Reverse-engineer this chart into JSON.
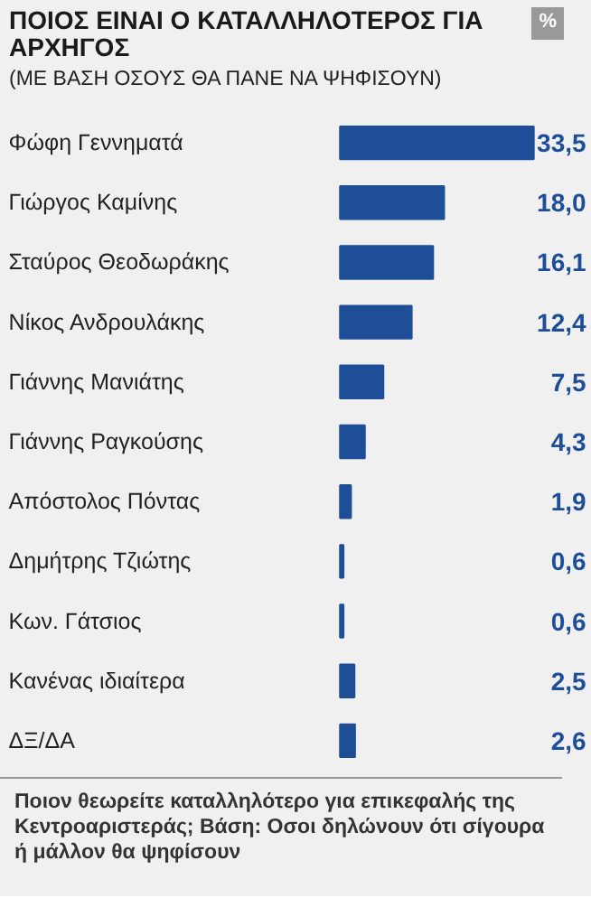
{
  "chart_data": {
    "type": "bar",
    "orientation": "horizontal",
    "title": "ΠΟΙΟΣ ΕΙΝΑΙ Ο ΚΑΤΑΛΛΗΛΟΤΕΡΟΣ ΓΙΑ ΑΡΧΗΓΟΣ",
    "subtitle": "(ΜΕ ΒΑΣΗ ΟΣΟΥΣ ΘΑ ΠΑΝΕ ΝΑ ΨΗΦΙΣΟΥΝ)",
    "categories": [
      "Φώφη Γεννηματά",
      "Γιώργος Καμίνης",
      "Σταύρος Θεοδωράκης",
      "Νίκος Ανδρουλάκης",
      "Γιάννης Μανιάτης",
      "Γιάννης Ραγκούσης",
      "Απόστολος Πόντας",
      "Δημήτρης Τζιώτης",
      "Κων. Γάτσιος",
      "Κανένας ιδιαίτερα",
      "ΔΞ/ΔΑ"
    ],
    "values": [
      33.5,
      18.0,
      16.1,
      12.4,
      7.5,
      4.3,
      1.9,
      0.6,
      0.6,
      2.5,
      2.6
    ],
    "value_labels": [
      "33,5",
      "18,0",
      "16,1",
      "12,4",
      "7,5",
      "4,3",
      "1,9",
      "0,6",
      "0,6",
      "2,5",
      "2,6"
    ],
    "color": "#1f4e99",
    "annotations": [
      "%",
      "Ποιον θεωρείτε καταλληλότερο για επικεφαλής της Κεντροαριστεράς; Βάση: Οσοι δηλώνουν ότι σίγουρα ή μάλλον θα ψηφίσουν"
    ]
  }
}
